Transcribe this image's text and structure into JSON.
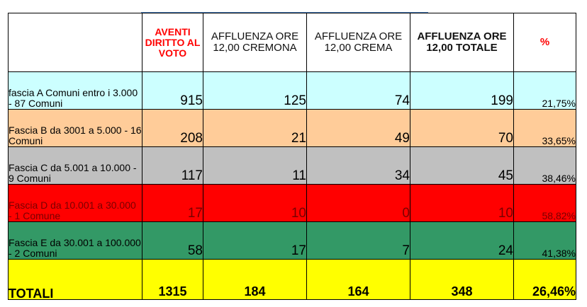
{
  "colors": {
    "header_bg": "#ffffff",
    "fascia_a": "#ccffff",
    "fascia_b": "#ffcc99",
    "fascia_c": "#c0c0c0",
    "fascia_d": "#ff0000",
    "fascia_e": "#339966",
    "totali": "#ffff00",
    "red_text": "#ff0000"
  },
  "table": {
    "headers": {
      "label": "",
      "aventi": "AVENTI DIRITTO AL VOTO",
      "cremona": "AFFLUENZA ORE 12,00 CREMONA",
      "crema": "AFFLUENZA ORE 12,00 CREMA",
      "totale": "AFFLUENZA ORE 12,00 TOTALE",
      "percent": "%"
    },
    "rows": [
      {
        "label": "fascia  A Comuni entro i 3.000  - 87 Comuni",
        "aventi": "915",
        "cremona": "125",
        "crema": "74",
        "totale": "199",
        "percent": "21,75%"
      },
      {
        "label": " Fascia B da 3001 a 5.000 - 16 Comuni",
        "aventi": "208",
        "cremona": "21",
        "crema": "49",
        "totale": "70",
        "percent": "33,65%"
      },
      {
        "label": "Fascia C da 5.001 a 10.000 - 9 Comuni",
        "aventi": "117",
        "cremona": "11",
        "crema": "34",
        "totale": "45",
        "percent": "38,46%"
      },
      {
        "label": "Fascia D da 10.001 a 30.000 - 1 Comune",
        "aventi": "17",
        "cremona": "10",
        "crema": "0",
        "totale": "10",
        "percent": "58,82%"
      },
      {
        "label": "Fascia E da 30.001 a 100.000 - 2 Comuni",
        "aventi": "58",
        "cremona": "17",
        "crema": "7",
        "totale": "24",
        "percent": "41,38%"
      }
    ],
    "totals": {
      "label": "TOTALI",
      "aventi": "1315",
      "cremona": "184",
      "crema": "164",
      "totale": "348",
      "percent": "26,46%"
    }
  }
}
